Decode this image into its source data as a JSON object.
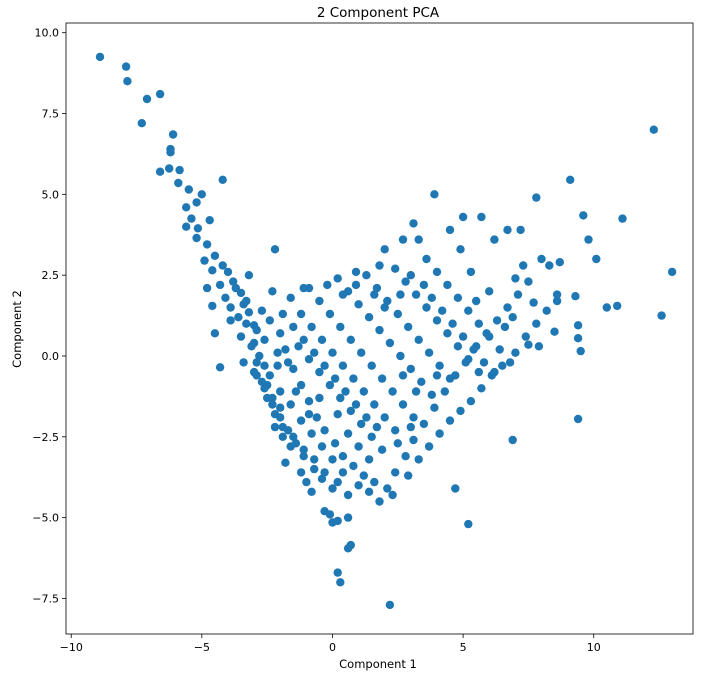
{
  "chart_data": {
    "type": "scatter",
    "title": "2 Component PCA",
    "xlabel": "Component 1",
    "ylabel": "Component 2",
    "xlim": [
      -10.2,
      13.8
    ],
    "ylim": [
      -8.6,
      10.3
    ],
    "xticks": [
      -10,
      -5,
      0,
      5,
      10
    ],
    "xtick_labels": [
      "−10",
      "−5",
      "0",
      "5",
      "10"
    ],
    "yticks": [
      -7.5,
      -5.0,
      -2.5,
      0.0,
      2.5,
      5.0,
      7.5,
      10.0
    ],
    "ytick_labels": [
      "−7.5",
      "−5.0",
      "−2.5",
      "0.0",
      "2.5",
      "5.0",
      "7.5",
      "10.0"
    ],
    "grid": false,
    "marker_color": "#1f77b4",
    "points": [
      [
        -8.9,
        9.25
      ],
      [
        -7.9,
        8.95
      ],
      [
        -7.85,
        8.5
      ],
      [
        -7.1,
        7.95
      ],
      [
        -6.6,
        8.1
      ],
      [
        -7.3,
        7.2
      ],
      [
        -6.1,
        6.85
      ],
      [
        -6.2,
        6.4
      ],
      [
        -6.2,
        6.3
      ],
      [
        -5.85,
        5.75
      ],
      [
        -6.25,
        5.8
      ],
      [
        -6.6,
        5.7
      ],
      [
        -4.2,
        5.45
      ],
      [
        -5.9,
        5.35
      ],
      [
        -5.5,
        5.15
      ],
      [
        -5.2,
        4.75
      ],
      [
        -5.0,
        5.0
      ],
      [
        -5.6,
        4.6
      ],
      [
        -5.4,
        4.25
      ],
      [
        -5.6,
        4.0
      ],
      [
        -5.15,
        3.95
      ],
      [
        -4.7,
        4.2
      ],
      [
        -5.2,
        3.65
      ],
      [
        -4.8,
        3.45
      ],
      [
        -4.5,
        3.1
      ],
      [
        -4.9,
        2.95
      ],
      [
        -4.2,
        2.8
      ],
      [
        -4.6,
        2.65
      ],
      [
        -4.3,
        2.2
      ],
      [
        -4.8,
        2.1
      ],
      [
        -3.8,
        2.3
      ],
      [
        -4.1,
        1.8
      ],
      [
        -3.5,
        1.95
      ],
      [
        -3.9,
        1.5
      ],
      [
        -4.6,
        1.55
      ],
      [
        -3.3,
        1.7
      ],
      [
        -3.6,
        1.2
      ],
      [
        -3.2,
        1.35
      ],
      [
        -3.0,
        0.95
      ],
      [
        -4.5,
        0.7
      ],
      [
        -4.3,
        -0.35
      ],
      [
        -3.2,
        2.5
      ],
      [
        -2.2,
        3.3
      ],
      [
        -3.5,
        0.6
      ],
      [
        -3.0,
        0.4
      ],
      [
        -2.8,
        0.0
      ],
      [
        -2.6,
        -0.3
      ],
      [
        -2.9,
        -0.6
      ],
      [
        -2.5,
        -0.9
      ],
      [
        -2.3,
        -1.3
      ],
      [
        -2.0,
        -1.6
      ],
      [
        -2.2,
        -2.2
      ],
      [
        -1.9,
        -2.5
      ],
      [
        -1.6,
        -2.8
      ],
      [
        -1.8,
        -3.3
      ],
      [
        -1.2,
        -3.6
      ],
      [
        -1.0,
        -3.9
      ],
      [
        -0.8,
        -4.2
      ],
      [
        -0.3,
        -4.8
      ],
      [
        -0.1,
        -4.9
      ],
      [
        0.0,
        -5.15
      ],
      [
        0.2,
        -5.1
      ],
      [
        0.6,
        -5.0
      ],
      [
        0.6,
        -5.95
      ],
      [
        0.7,
        -5.85
      ],
      [
        0.2,
        -6.7
      ],
      [
        0.3,
        -7.0
      ],
      [
        2.2,
        -7.7
      ],
      [
        5.2,
        -5.2
      ],
      [
        4.7,
        -4.1
      ],
      [
        6.9,
        -2.6
      ],
      [
        9.4,
        -1.95
      ],
      [
        -2.9,
        0.8
      ],
      [
        -2.7,
        1.4
      ],
      [
        -2.4,
        1.1
      ],
      [
        -2.0,
        0.7
      ],
      [
        -1.8,
        0.2
      ],
      [
        -1.5,
        -0.4
      ],
      [
        -1.2,
        -0.9
      ],
      [
        -0.9,
        -1.4
      ],
      [
        -0.6,
        -1.9
      ],
      [
        -0.3,
        -2.3
      ],
      [
        0.1,
        -2.7
      ],
      [
        0.4,
        -3.1
      ],
      [
        0.8,
        -3.4
      ],
      [
        1.2,
        -3.7
      ],
      [
        1.6,
        -3.9
      ],
      [
        2.1,
        -4.1
      ],
      [
        2.4,
        -3.6
      ],
      [
        2.8,
        -3.1
      ],
      [
        3.1,
        -2.6
      ],
      [
        3.5,
        -2.1
      ],
      [
        3.9,
        -1.6
      ],
      [
        4.3,
        -1.1
      ],
      [
        4.7,
        -0.6
      ],
      [
        5.1,
        -0.2
      ],
      [
        5.5,
        0.3
      ],
      [
        5.9,
        0.7
      ],
      [
        6.3,
        1.1
      ],
      [
        6.7,
        1.5
      ],
      [
        7.1,
        1.9
      ],
      [
        7.5,
        2.3
      ],
      [
        -1.6,
        1.8
      ],
      [
        -1.2,
        1.3
      ],
      [
        -0.8,
        0.9
      ],
      [
        -0.4,
        0.5
      ],
      [
        0.0,
        0.1
      ],
      [
        0.4,
        -0.3
      ],
      [
        0.8,
        -0.7
      ],
      [
        1.2,
        -1.1
      ],
      [
        1.6,
        -1.5
      ],
      [
        2.0,
        -1.9
      ],
      [
        2.4,
        -2.3
      ],
      [
        -0.9,
        2.1
      ],
      [
        -0.5,
        1.7
      ],
      [
        -0.1,
        1.3
      ],
      [
        0.3,
        0.9
      ],
      [
        0.7,
        0.5
      ],
      [
        1.1,
        0.1
      ],
      [
        1.5,
        -0.3
      ],
      [
        1.9,
        -0.7
      ],
      [
        2.3,
        -1.1
      ],
      [
        2.7,
        -1.5
      ],
      [
        3.1,
        -1.9
      ],
      [
        0.2,
        2.4
      ],
      [
        0.6,
        2.0
      ],
      [
        1.0,
        1.6
      ],
      [
        1.4,
        1.2
      ],
      [
        1.8,
        0.8
      ],
      [
        2.2,
        0.4
      ],
      [
        2.6,
        0.0
      ],
      [
        3.0,
        -0.4
      ],
      [
        3.4,
        -0.8
      ],
      [
        3.8,
        -1.2
      ],
      [
        1.3,
        2.5
      ],
      [
        1.7,
        2.1
      ],
      [
        2.1,
        1.7
      ],
      [
        2.5,
        1.3
      ],
      [
        2.9,
        0.9
      ],
      [
        3.3,
        0.5
      ],
      [
        3.7,
        0.1
      ],
      [
        4.1,
        -0.3
      ],
      [
        4.5,
        -0.7
      ],
      [
        2.4,
        2.7
      ],
      [
        2.8,
        2.3
      ],
      [
        3.2,
        1.9
      ],
      [
        3.6,
        1.5
      ],
      [
        4.0,
        1.1
      ],
      [
        4.4,
        0.7
      ],
      [
        4.8,
        0.3
      ],
      [
        5.2,
        -0.1
      ],
      [
        5.6,
        -0.5
      ],
      [
        3.6,
        3.0
      ],
      [
        4.0,
        2.6
      ],
      [
        4.4,
        2.2
      ],
      [
        4.8,
        1.8
      ],
      [
        5.2,
        1.4
      ],
      [
        5.6,
        1.0
      ],
      [
        6.0,
        0.6
      ],
      [
        6.4,
        0.2
      ],
      [
        6.8,
        -0.2
      ],
      [
        -3.4,
        -0.2
      ],
      [
        -3.0,
        -0.5
      ],
      [
        -2.6,
        -1.0
      ],
      [
        -2.3,
        -1.5
      ],
      [
        -2.0,
        -1.9
      ],
      [
        -1.7,
        -2.3
      ],
      [
        -1.4,
        -2.7
      ],
      [
        -1.1,
        -3.1
      ],
      [
        -0.7,
        -3.5
      ],
      [
        -0.4,
        -3.8
      ],
      [
        0.0,
        -4.1
      ],
      [
        2.0,
        3.3
      ],
      [
        2.7,
        3.6
      ],
      [
        3.3,
        3.6
      ],
      [
        3.1,
        4.1
      ],
      [
        3.9,
        5.0
      ],
      [
        4.5,
        3.9
      ],
      [
        5.0,
        4.3
      ],
      [
        5.7,
        4.3
      ],
      [
        6.2,
        3.6
      ],
      [
        6.7,
        3.9
      ],
      [
        7.2,
        3.9
      ],
      [
        7.8,
        4.9
      ],
      [
        8.0,
        3.0
      ],
      [
        8.7,
        2.9
      ],
      [
        9.1,
        5.45
      ],
      [
        9.6,
        4.35
      ],
      [
        9.8,
        3.6
      ],
      [
        10.1,
        3.0
      ],
      [
        11.1,
        4.25
      ],
      [
        12.3,
        7.0
      ],
      [
        13.0,
        2.6
      ],
      [
        12.6,
        1.25
      ],
      [
        10.5,
        1.5
      ],
      [
        10.9,
        1.55
      ],
      [
        9.3,
        1.85
      ],
      [
        9.4,
        0.95
      ],
      [
        9.4,
        0.55
      ],
      [
        9.5,
        0.15
      ],
      [
        8.5,
        0.75
      ],
      [
        7.9,
        0.3
      ],
      [
        7.5,
        0.35
      ],
      [
        6.9,
        1.2
      ],
      [
        7.3,
        2.8
      ],
      [
        8.3,
        2.8
      ],
      [
        8.6,
        1.9
      ],
      [
        7.7,
        1.65
      ],
      [
        5.3,
        2.6
      ],
      [
        4.9,
        3.3
      ],
      [
        -2.6,
        0.5
      ],
      [
        -2.1,
        0.1
      ],
      [
        -1.7,
        -0.2
      ],
      [
        -1.3,
        0.3
      ],
      [
        -0.9,
        -0.1
      ],
      [
        -0.5,
        -0.5
      ],
      [
        -0.1,
        -0.9
      ],
      [
        0.3,
        -1.3
      ],
      [
        0.7,
        -1.7
      ],
      [
        1.1,
        -2.1
      ],
      [
        1.5,
        -2.5
      ],
      [
        1.9,
        -2.9
      ],
      [
        -2.4,
        -0.6
      ],
      [
        -2.0,
        -1.1
      ],
      [
        -1.6,
        -1.5
      ],
      [
        -1.2,
        -2.0
      ],
      [
        -0.8,
        -2.4
      ],
      [
        -0.4,
        -2.8
      ],
      [
        0.0,
        -3.2
      ],
      [
        0.4,
        -3.6
      ],
      [
        -1.9,
        1.3
      ],
      [
        -1.5,
        0.9
      ],
      [
        -1.1,
        0.5
      ],
      [
        -0.7,
        0.1
      ],
      [
        -0.3,
        -0.3
      ],
      [
        0.1,
        -0.7
      ],
      [
        0.5,
        -1.1
      ],
      [
        0.9,
        -1.5
      ],
      [
        1.3,
        -1.9
      ],
      [
        1.7,
        -2.2
      ],
      [
        -3.3,
        1.0
      ],
      [
        -3.1,
        0.3
      ],
      [
        -2.9,
        -0.2
      ],
      [
        -2.7,
        -0.8
      ],
      [
        -2.5,
        -1.3
      ],
      [
        -2.2,
        -1.8
      ],
      [
        -1.9,
        -2.2
      ],
      [
        -1.5,
        -2.5
      ],
      [
        -1.1,
        -2.9
      ],
      [
        -0.7,
        -3.2
      ],
      [
        -0.3,
        -3.6
      ],
      [
        0.2,
        -3.9
      ],
      [
        0.6,
        -4.3
      ],
      [
        1.0,
        -4.0
      ],
      [
        1.4,
        -4.2
      ],
      [
        1.8,
        -4.5
      ],
      [
        2.3,
        -4.3
      ],
      [
        2.9,
        -3.7
      ],
      [
        3.3,
        -3.2
      ],
      [
        3.7,
        -2.8
      ],
      [
        4.1,
        -2.4
      ],
      [
        4.5,
        -2.0
      ],
      [
        4.9,
        -1.7
      ],
      [
        5.3,
        -1.4
      ],
      [
        5.7,
        -1.0
      ],
      [
        6.1,
        -0.6
      ],
      [
        6.5,
        -0.3
      ],
      [
        7.0,
        0.1
      ],
      [
        7.4,
        0.6
      ],
      [
        7.8,
        1.0
      ],
      [
        8.2,
        1.4
      ],
      [
        8.6,
        1.7
      ],
      [
        0.4,
        1.9
      ],
      [
        0.9,
        2.2
      ],
      [
        1.6,
        1.9
      ],
      [
        2.0,
        1.5
      ],
      [
        2.6,
        1.9
      ],
      [
        3.0,
        2.5
      ],
      [
        3.5,
        2.2
      ],
      [
        3.8,
        1.8
      ],
      [
        4.2,
        1.4
      ],
      [
        4.6,
        1.0
      ],
      [
        5.0,
        0.6
      ],
      [
        5.4,
        0.2
      ],
      [
        5.8,
        -0.2
      ],
      [
        6.2,
        -0.5
      ],
      [
        6.6,
        0.9
      ],
      [
        7.0,
        2.4
      ],
      [
        6.0,
        2.0
      ],
      [
        5.5,
        1.7
      ],
      [
        -4.0,
        2.6
      ],
      [
        -3.7,
        2.1
      ],
      [
        -3.4,
        1.6
      ],
      [
        -3.9,
        1.1
      ],
      [
        -2.3,
        2.0
      ],
      [
        -1.1,
        2.1
      ],
      [
        -0.2,
        2.2
      ],
      [
        0.9,
        2.6
      ],
      [
        1.8,
        2.8
      ],
      [
        -2.1,
        -0.3
      ],
      [
        -1.4,
        -1.1
      ],
      [
        -0.9,
        -1.8
      ],
      [
        -0.5,
        -1.3
      ],
      [
        0.2,
        -1.8
      ],
      [
        0.6,
        -2.4
      ],
      [
        1.0,
        -2.8
      ],
      [
        1.4,
        -3.2
      ],
      [
        2.5,
        -2.7
      ],
      [
        3.0,
        -2.2
      ],
      [
        2.7,
        -0.6
      ],
      [
        3.2,
        -1.1
      ],
      [
        4.0,
        -0.6
      ]
    ]
  }
}
